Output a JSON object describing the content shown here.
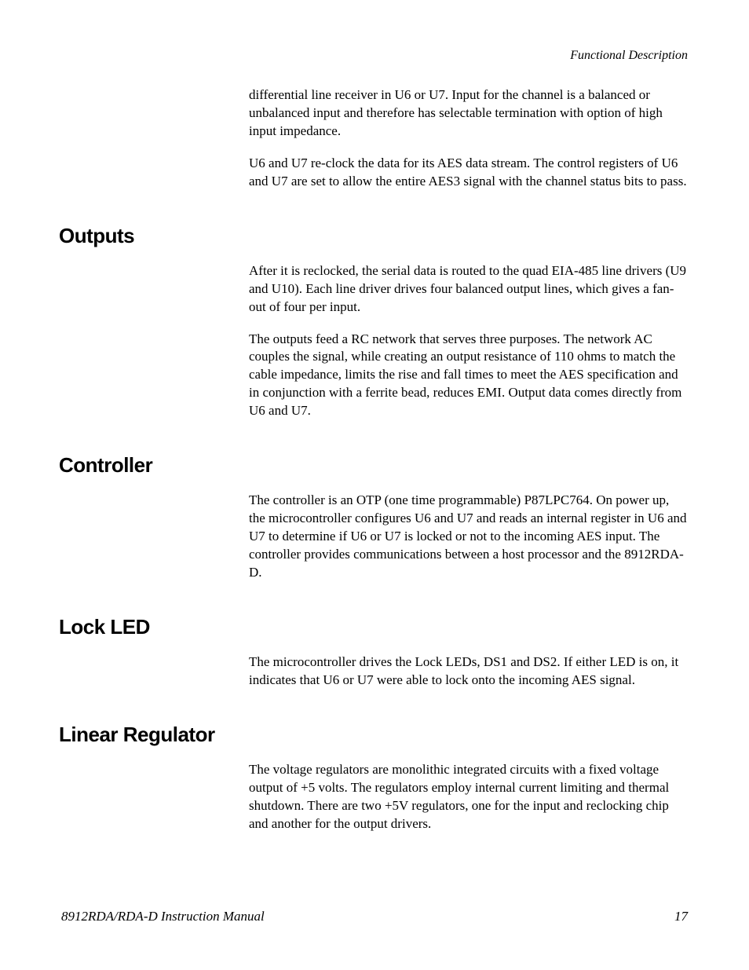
{
  "header": {
    "section_title": "Functional Description"
  },
  "intro": {
    "para1": "differential line receiver in U6 or U7.  Input for the channel is a balanced or unbalanced input and therefore has selectable termination with option of high input impedance.",
    "para2": "U6 and U7 re-clock the data for its AES data stream.  The control registers of U6 and U7 are set to allow the entire AES3 signal with the channel status bits to pass."
  },
  "sections": {
    "outputs": {
      "heading": "Outputs",
      "para1": "After it is reclocked, the serial data is routed to the quad EIA-485 line drivers (U9 and U10).  Each line driver drives four balanced output lines, which gives a fan-out of four per input.",
      "para2": "The outputs feed a RC network that serves three purposes.  The network AC couples the signal, while creating an output resistance of 110 ohms to match the cable impedance, limits the rise and fall times to meet the AES specification and in conjunction with a ferrite bead, reduces EMI. Output data comes directly from U6 and U7."
    },
    "controller": {
      "heading": "Controller",
      "para1": "The controller is an OTP (one time programmable) P87LPC764. On power up, the microcontroller configures U6 and U7 and reads an internal register in U6 and U7 to determine if U6 or U7 is locked or not to the incoming AES input. The controller provides communications between a host processor and the 8912RDA-D."
    },
    "lock_led": {
      "heading": "Lock LED",
      "para1": "The microcontroller drives the Lock LEDs, DS1 and DS2. If either LED is on, it indicates that U6 or U7 were able to lock onto the incoming AES signal."
    },
    "linear_regulator": {
      "heading": "Linear Regulator",
      "para1": "The voltage regulators are monolithic integrated circuits with a fixed voltage output of +5 volts. The regulators employ internal current limiting and thermal shutdown. There are two +5V regulators, one for the input and reclocking chip and another for the output drivers."
    }
  },
  "footer": {
    "manual_title": "8912RDA/RDA-D Instruction Manual",
    "page_number": "17"
  }
}
